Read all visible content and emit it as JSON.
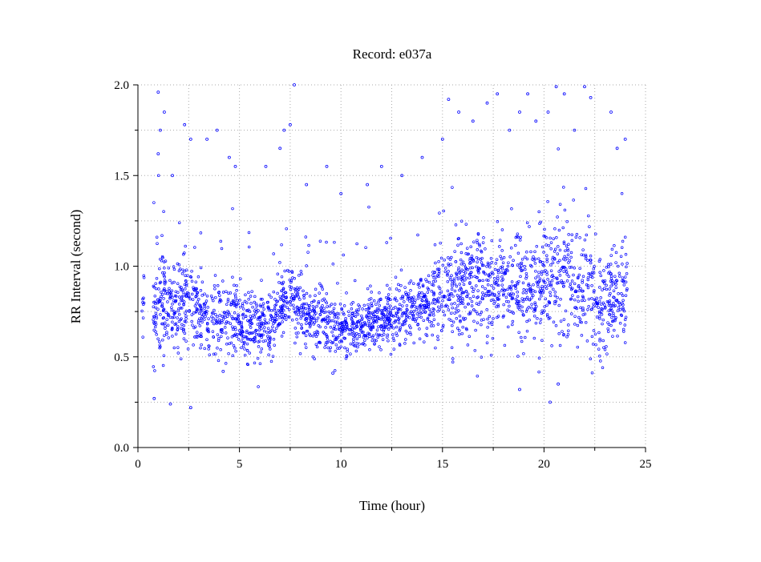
{
  "chart_data": {
    "type": "scatter",
    "title": "Record:  e037a",
    "xlabel": "Time (hour)",
    "ylabel": "RR Interval (second)",
    "xlim": [
      0,
      25
    ],
    "ylim": [
      0.0,
      2.0
    ],
    "x_ticks": [
      0,
      5,
      10,
      15,
      20,
      25
    ],
    "x_tick_labels": [
      "0",
      "5",
      "10",
      "15",
      "20",
      "25"
    ],
    "y_ticks": [
      0.0,
      0.5,
      1.0,
      1.5,
      2.0
    ],
    "y_tick_labels": [
      "0.0",
      "0.5",
      "1.0",
      "1.5",
      "2.0"
    ],
    "grid": true,
    "marker": "open-circle",
    "marker_color": "#0000ff",
    "series": [
      {
        "trend": [
          [
            0.2,
            0.8
          ],
          [
            0.8,
            0.72
          ],
          [
            1.2,
            0.82
          ],
          [
            1.8,
            0.75
          ],
          [
            2.5,
            0.8
          ],
          [
            3.5,
            0.7
          ],
          [
            4.5,
            0.72
          ],
          [
            5.5,
            0.68
          ],
          [
            6.2,
            0.66
          ],
          [
            7.0,
            0.74
          ],
          [
            7.5,
            0.82
          ],
          [
            8.2,
            0.72
          ],
          [
            9.0,
            0.7
          ],
          [
            10.0,
            0.66
          ],
          [
            10.8,
            0.67
          ],
          [
            11.5,
            0.7
          ],
          [
            12.5,
            0.72
          ],
          [
            13.5,
            0.76
          ],
          [
            14.5,
            0.8
          ],
          [
            15.2,
            0.86
          ],
          [
            16.0,
            0.88
          ],
          [
            17.0,
            0.88
          ],
          [
            18.0,
            0.9
          ],
          [
            19.0,
            0.88
          ],
          [
            20.0,
            0.9
          ],
          [
            21.0,
            0.94
          ],
          [
            22.2,
            0.88
          ],
          [
            22.5,
            0.75
          ],
          [
            23.0,
            0.8
          ],
          [
            24.0,
            0.85
          ]
        ],
        "spread": [
          [
            0.2,
            0.1
          ],
          [
            1.0,
            0.14
          ],
          [
            2.0,
            0.14
          ],
          [
            3.0,
            0.11
          ],
          [
            5.0,
            0.09
          ],
          [
            7.0,
            0.1
          ],
          [
            8.0,
            0.09
          ],
          [
            10.0,
            0.07
          ],
          [
            12.0,
            0.07
          ],
          [
            14.0,
            0.09
          ],
          [
            15.0,
            0.12
          ],
          [
            16.0,
            0.15
          ],
          [
            18.0,
            0.14
          ],
          [
            20.0,
            0.16
          ],
          [
            21.0,
            0.18
          ],
          [
            22.2,
            0.16
          ],
          [
            24.0,
            0.13
          ]
        ],
        "outliers": [
          [
            1.0,
            1.96
          ],
          [
            1.1,
            1.75
          ],
          [
            1.3,
            1.85
          ],
          [
            1.0,
            1.62
          ],
          [
            1.7,
            1.5
          ],
          [
            2.3,
            1.78
          ],
          [
            2.6,
            1.7
          ],
          [
            3.4,
            1.7
          ],
          [
            3.9,
            1.75
          ],
          [
            4.5,
            1.6
          ],
          [
            4.8,
            1.55
          ],
          [
            6.3,
            1.55
          ],
          [
            7.0,
            1.65
          ],
          [
            7.2,
            1.75
          ],
          [
            7.5,
            1.78
          ],
          [
            7.7,
            2.0
          ],
          [
            8.3,
            1.45
          ],
          [
            9.3,
            1.55
          ],
          [
            10.0,
            1.4
          ],
          [
            11.3,
            1.45
          ],
          [
            12.0,
            1.55
          ],
          [
            13.0,
            1.5
          ],
          [
            14.0,
            1.6
          ],
          [
            15.0,
            1.7
          ],
          [
            15.3,
            1.92
          ],
          [
            15.8,
            1.85
          ],
          [
            16.5,
            1.8
          ],
          [
            17.2,
            1.9
          ],
          [
            17.7,
            1.95
          ],
          [
            18.3,
            1.75
          ],
          [
            18.8,
            1.85
          ],
          [
            19.2,
            1.95
          ],
          [
            19.6,
            1.8
          ],
          [
            20.2,
            1.85
          ],
          [
            20.6,
            1.99
          ],
          [
            21.0,
            1.95
          ],
          [
            21.5,
            1.75
          ],
          [
            22.0,
            1.99
          ],
          [
            22.3,
            1.93
          ],
          [
            23.3,
            1.85
          ],
          [
            23.6,
            1.65
          ],
          [
            24.0,
            1.7
          ],
          [
            0.8,
            0.27
          ],
          [
            1.6,
            0.24
          ],
          [
            2.6,
            0.22
          ],
          [
            18.8,
            0.32
          ],
          [
            20.3,
            0.25
          ],
          [
            20.7,
            0.35
          ],
          [
            9.6,
            0.41
          ],
          [
            4.2,
            0.42
          ]
        ],
        "x_range": [
          0.2,
          24.1
        ]
      }
    ]
  }
}
